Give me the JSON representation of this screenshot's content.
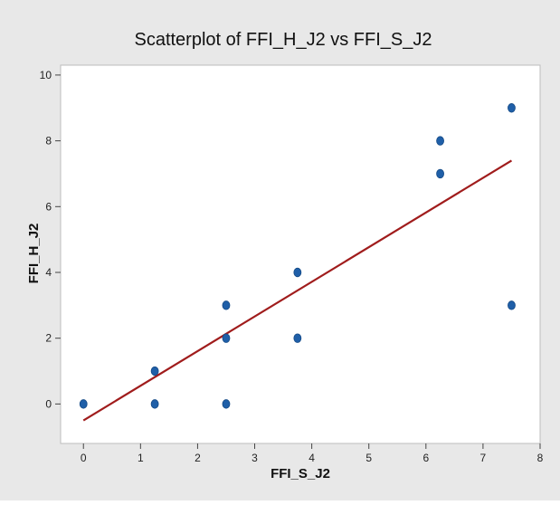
{
  "chart_data": {
    "type": "scatter",
    "title": "Scatterplot of FFI_H_J2 vs FFI_S_J2",
    "xlabel": "FFI_S_J2",
    "ylabel": "FFI_H_J2",
    "xlim": [
      -0.4,
      8.0
    ],
    "ylim": [
      -1.2,
      10.3
    ],
    "xticks": [
      0,
      1,
      2,
      3,
      4,
      5,
      6,
      7,
      8
    ],
    "yticks": [
      0,
      2,
      4,
      6,
      8,
      10
    ],
    "grid": false,
    "legend": "none",
    "series": [
      {
        "points": [
          [
            0,
            0
          ],
          [
            1.25,
            1
          ],
          [
            1.25,
            0
          ],
          [
            2.5,
            3
          ],
          [
            2.5,
            2
          ],
          [
            2.5,
            0
          ],
          [
            3.75,
            4
          ],
          [
            3.75,
            2
          ],
          [
            6.25,
            8
          ],
          [
            6.25,
            7
          ],
          [
            7.5,
            9
          ],
          [
            7.5,
            3
          ]
        ],
        "color": "#1f5fa8"
      }
    ],
    "fit_line": {
      "x": [
        0,
        7.5
      ],
      "y": [
        -0.5,
        7.4
      ],
      "color": "#a01c1c"
    },
    "colors": {
      "background": "#e8e8e8",
      "plot_area": "#ffffff",
      "frame": "#bdbdbd"
    }
  }
}
